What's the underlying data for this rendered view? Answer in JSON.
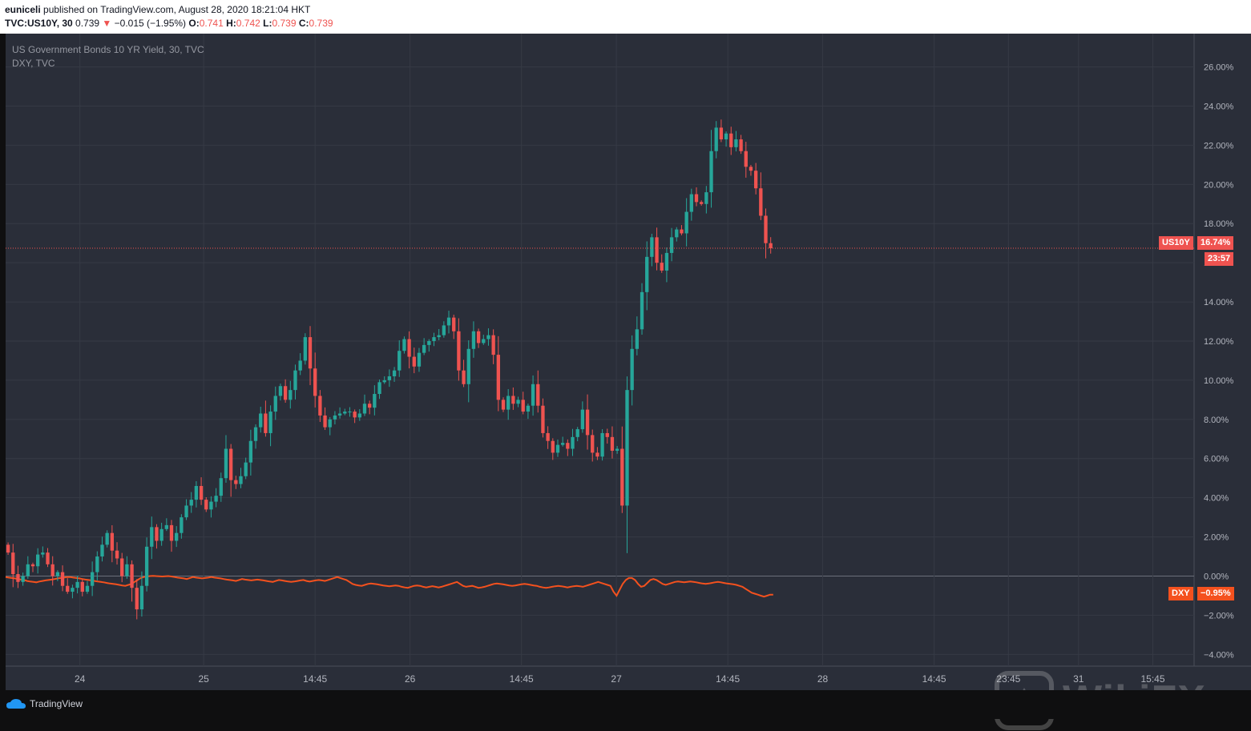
{
  "header": {
    "publisher": "euniceli",
    "published_text": " published on TradingView.com, August 28, 2020 18:21:04 HKT",
    "symbol_line": "TVC:US10Y, 30",
    "last": "0.739",
    "change": "−0.015 (−1.95%)",
    "o_label": "O:",
    "o_val": "0.741",
    "h_label": "H:",
    "h_val": "0.742",
    "l_label": "L:",
    "l_val": "0.739",
    "c_label": "C:",
    "c_val": "0.739"
  },
  "legend": {
    "main": "US Government Bonds 10 YR Yield, 30, TVC",
    "compare": "DXY, TVC"
  },
  "badges": {
    "us10y_label": "US10Y",
    "us10y_value": "16.74%",
    "countdown": "23:57",
    "dxy_label": "DXY",
    "dxy_value": "−0.95%"
  },
  "footer": {
    "brand": "TradingView"
  },
  "watermark": {
    "text": "WikiFX"
  },
  "colors": {
    "background": "#2a2e39",
    "grid": "#363a45",
    "up": "#26a69a",
    "down": "#ef5350",
    "dxy_line": "#f4511e"
  },
  "chart_data": {
    "type": "candlestick",
    "y_unit": "%",
    "y_ticks": [
      "26.00%",
      "24.00%",
      "22.00%",
      "20.00%",
      "18.00%",
      "16.00%",
      "14.00%",
      "12.00%",
      "10.00%",
      "8.00%",
      "6.00%",
      "4.00%",
      "2.00%",
      "0.00%",
      "−2.00%",
      "−4.00%"
    ],
    "y_tick_values": [
      26,
      24,
      22,
      20,
      18,
      16,
      14,
      12,
      10,
      8,
      6,
      4,
      2,
      0,
      -2,
      -4
    ],
    "ylim": [
      -4.6,
      27.7
    ],
    "x_ticks": [
      "24",
      "25",
      "14:45",
      "26",
      "14:45",
      "27",
      "14:45",
      "28",
      "14:45",
      "23:45",
      "31",
      "15:45"
    ],
    "x_tick_index": [
      18,
      48,
      75,
      98,
      125,
      148,
      175,
      198,
      225,
      243,
      260,
      278
    ],
    "x_range": [
      0,
      288
    ],
    "series": [
      {
        "name": "US10Y",
        "kind": "candles",
        "last_value": 16.74,
        "close": [
          1.2,
          0.1,
          -0.3,
          0.0,
          0.6,
          0.5,
          1.1,
          1.2,
          0.6,
          0.0,
          0.2,
          -0.5,
          -0.8,
          -0.6,
          -0.3,
          -0.8,
          -0.5,
          0.2,
          1.0,
          1.6,
          2.2,
          1.3,
          0.9,
          0.0,
          0.6,
          -0.6,
          -1.7,
          -0.5,
          1.5,
          2.5,
          1.8,
          2.4,
          2.6,
          1.8,
          2.2,
          3.0,
          3.6,
          3.9,
          4.6,
          3.9,
          3.4,
          3.8,
          4.1,
          5.0,
          6.5,
          4.9,
          4.7,
          5.1,
          5.8,
          6.9,
          7.6,
          8.3,
          7.3,
          8.4,
          9.2,
          9.7,
          9.0,
          9.5,
          10.5,
          11.0,
          12.2,
          10.6,
          9.2,
          8.2,
          7.6,
          8.0,
          8.2,
          8.3,
          8.4,
          8.4,
          8.1,
          8.3,
          8.8,
          8.6,
          9.3,
          9.9,
          10.0,
          10.2,
          10.5,
          11.5,
          12.1,
          11.2,
          10.7,
          11.4,
          11.8,
          12.0,
          12.2,
          12.3,
          12.8,
          13.2,
          12.5,
          10.5,
          9.8,
          11.6,
          12.5,
          11.9,
          12.1,
          12.3,
          11.3,
          9.0,
          8.5,
          9.2,
          8.8,
          9.0,
          8.4,
          8.7,
          9.8,
          8.7,
          7.3,
          6.9,
          6.3,
          6.7,
          6.8,
          6.5,
          7.1,
          7.5,
          8.5,
          7.2,
          6.3,
          6.1,
          7.3,
          7.1,
          6.4,
          6.5,
          3.6,
          9.5,
          11.6,
          12.6,
          14.5,
          16.3,
          17.3,
          16.0,
          15.6,
          16.5,
          17.3,
          17.7,
          17.5,
          18.6,
          19.5,
          19.1,
          19.0,
          19.6,
          21.7,
          22.9,
          22.3,
          22.6,
          21.9,
          22.3,
          21.7,
          20.9,
          20.7,
          19.8,
          18.4,
          17.0,
          16.74
        ],
        "open_first": 1.6
      },
      {
        "name": "DXY",
        "kind": "line",
        "last_value": -0.95,
        "values": [
          -0.05,
          -0.08,
          -0.1,
          -0.12,
          -0.15,
          -0.18,
          -0.2,
          -0.25,
          -0.28,
          -0.3,
          -0.32,
          -0.28,
          -0.25,
          -0.22,
          -0.2,
          -0.18,
          -0.15,
          -0.12,
          -0.1,
          -0.08,
          -0.05,
          -0.05,
          -0.08,
          -0.1,
          -0.12,
          -0.15,
          -0.18,
          -0.2,
          -0.22,
          -0.25,
          -0.28,
          -0.3,
          -0.32,
          -0.35,
          -0.38,
          -0.4,
          -0.42,
          -0.45,
          -0.48,
          -0.5,
          -0.45,
          -0.4,
          -0.3,
          -0.2,
          -0.1,
          -0.05,
          -0.02,
          0.0,
          0.01,
          0.0,
          -0.01,
          -0.02,
          -0.01,
          0.0,
          -0.02,
          -0.05,
          -0.08,
          -0.1,
          -0.12,
          -0.15,
          -0.1,
          -0.05,
          -0.08,
          -0.1,
          -0.12,
          -0.1,
          -0.08,
          -0.05,
          -0.08,
          -0.1,
          -0.12,
          -0.15,
          -0.18,
          -0.2,
          -0.22,
          -0.25,
          -0.2,
          -0.15,
          -0.18,
          -0.2,
          -0.22,
          -0.2,
          -0.18,
          -0.2,
          -0.22,
          -0.25,
          -0.28,
          -0.3,
          -0.25,
          -0.2,
          -0.22,
          -0.25,
          -0.28,
          -0.3,
          -0.28,
          -0.25,
          -0.22,
          -0.2,
          -0.25,
          -0.28,
          -0.25,
          -0.22,
          -0.2,
          -0.22,
          -0.25,
          -0.2,
          -0.15,
          -0.1,
          -0.05,
          -0.1,
          -0.15,
          -0.2,
          -0.3,
          -0.4,
          -0.45,
          -0.48,
          -0.5,
          -0.45,
          -0.4,
          -0.38,
          -0.4,
          -0.42,
          -0.45,
          -0.48,
          -0.5,
          -0.52,
          -0.5,
          -0.48,
          -0.5,
          -0.55,
          -0.58,
          -0.6,
          -0.55,
          -0.5,
          -0.48,
          -0.5,
          -0.55,
          -0.58,
          -0.55,
          -0.52,
          -0.55,
          -0.58,
          -0.55,
          -0.5,
          -0.45,
          -0.4,
          -0.35,
          -0.3,
          -0.4,
          -0.5,
          -0.55,
          -0.52,
          -0.5,
          -0.55,
          -0.6,
          -0.58,
          -0.55,
          -0.5,
          -0.45,
          -0.4,
          -0.38,
          -0.4,
          -0.42,
          -0.45,
          -0.48,
          -0.5,
          -0.48,
          -0.45,
          -0.42,
          -0.4,
          -0.42,
          -0.45,
          -0.48,
          -0.5,
          -0.55,
          -0.58,
          -0.6,
          -0.58,
          -0.55,
          -0.52,
          -0.5,
          -0.52,
          -0.55,
          -0.58,
          -0.55,
          -0.52,
          -0.5,
          -0.52,
          -0.55,
          -0.5,
          -0.45,
          -0.4,
          -0.35,
          -0.3,
          -0.35,
          -0.4,
          -0.45,
          -0.5,
          -0.8,
          -1.0,
          -0.7,
          -0.4,
          -0.2,
          -0.1,
          -0.1,
          -0.2,
          -0.4,
          -0.55,
          -0.5,
          -0.35,
          -0.2,
          -0.15,
          -0.2,
          -0.3,
          -0.4,
          -0.45,
          -0.4,
          -0.35,
          -0.3,
          -0.28,
          -0.3,
          -0.32,
          -0.3,
          -0.28,
          -0.3,
          -0.32,
          -0.35,
          -0.38,
          -0.4,
          -0.38,
          -0.35,
          -0.32,
          -0.3,
          -0.32,
          -0.35,
          -0.38,
          -0.4,
          -0.42,
          -0.45,
          -0.5,
          -0.55,
          -0.65,
          -0.75,
          -0.85,
          -0.9,
          -0.95,
          -1.0,
          -1.05,
          -1.0,
          -0.95,
          -0.95
        ]
      }
    ]
  }
}
